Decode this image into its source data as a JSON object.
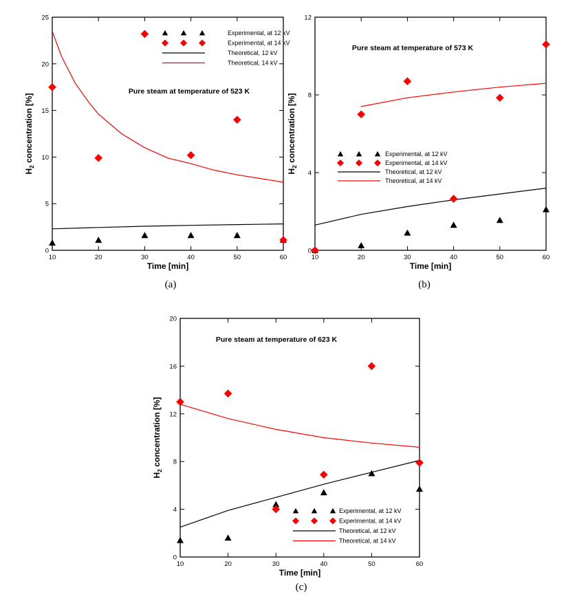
{
  "chart_data": [
    {
      "id": "a",
      "type": "scatter",
      "caption": "(a)",
      "title": "Pure steam at temperature of 523 K",
      "xlabel": "Time [min]",
      "ylabel_prefix": "H",
      "ylabel_sub": "2",
      "ylabel_suffix": " concentration [%]",
      "xlim": [
        10,
        60
      ],
      "ylim": [
        0,
        25
      ],
      "xticks": [
        10,
        20,
        30,
        40,
        50,
        60
      ],
      "yticks": [
        0,
        5,
        10,
        15,
        20,
        25
      ],
      "legend_position": "top-right",
      "series": [
        {
          "name": "Experimental, at 12 kV",
          "kind": "marker",
          "marker": "triangle",
          "color": "#000000",
          "x": [
            10,
            20,
            30,
            40,
            50,
            60
          ],
          "y": [
            0.8,
            1.1,
            1.6,
            1.6,
            1.6,
            1.1
          ]
        },
        {
          "name": "Experimental, at 14 kV",
          "kind": "marker",
          "marker": "diamond",
          "color": "#ff0000",
          "x": [
            10,
            20,
            30,
            40,
            50,
            60
          ],
          "y": [
            17.5,
            9.9,
            23.2,
            10.2,
            14.0,
            1.1
          ]
        },
        {
          "name": "Theoretical, 12 kV",
          "kind": "line",
          "color": "#000000",
          "x": [
            10,
            20,
            30,
            40,
            50,
            60
          ],
          "y": [
            2.3,
            2.45,
            2.58,
            2.68,
            2.76,
            2.83
          ]
        },
        {
          "name": "Theoretical, 14 kV",
          "kind": "line",
          "color": "#ff0000",
          "x": [
            10,
            12,
            15,
            18,
            20,
            25,
            30,
            35,
            40,
            45,
            50,
            55,
            60
          ],
          "y": [
            23.5,
            20.8,
            17.9,
            15.8,
            14.6,
            12.5,
            11.0,
            9.9,
            9.3,
            8.6,
            8.1,
            7.7,
            7.3
          ]
        }
      ]
    },
    {
      "id": "b",
      "type": "scatter",
      "caption": "(b)",
      "title": "Pure steam at temperature of 573 K",
      "xlabel": "Time [min]",
      "ylabel_prefix": "H",
      "ylabel_sub": "2",
      "ylabel_suffix": " concentration [%]",
      "xlim": [
        10,
        60
      ],
      "ylim": [
        0,
        12
      ],
      "xticks": [
        10,
        20,
        30,
        40,
        50,
        60
      ],
      "yticks": [
        0,
        4,
        8,
        12
      ],
      "legend_position": "center-left",
      "series": [
        {
          "name": "Experimental, at 12 kV",
          "kind": "marker",
          "marker": "triangle",
          "color": "#000000",
          "x": [
            10,
            20,
            30,
            40,
            50,
            60
          ],
          "y": [
            0.0,
            0.25,
            0.9,
            1.3,
            1.55,
            2.1
          ]
        },
        {
          "name": "Experimental, at 14 kV",
          "kind": "marker",
          "marker": "diamond",
          "color": "#ff0000",
          "x": [
            10,
            20,
            30,
            40,
            50,
            60
          ],
          "y": [
            0.0,
            7.0,
            8.7,
            2.65,
            7.85,
            10.6
          ]
        },
        {
          "name": "Theoretical, at 12 kV",
          "kind": "line",
          "color": "#000000",
          "x": [
            10,
            20,
            30,
            40,
            50,
            60
          ],
          "y": [
            1.3,
            1.85,
            2.25,
            2.6,
            2.9,
            3.2
          ]
        },
        {
          "name": "Theoretical, at 14 kV",
          "kind": "line",
          "color": "#ff0000",
          "x": [
            20,
            30,
            40,
            50,
            60
          ],
          "y": [
            7.4,
            7.85,
            8.15,
            8.4,
            8.6
          ]
        }
      ]
    },
    {
      "id": "c",
      "type": "scatter",
      "caption": "(c)",
      "title": "Pure steam at temperature of 623 K",
      "xlabel": "Time [min]",
      "ylabel_prefix": "H",
      "ylabel_sub": "2",
      "ylabel_suffix": " concentration [%]",
      "xlim": [
        10,
        60
      ],
      "ylim": [
        0,
        20
      ],
      "xticks": [
        10,
        20,
        30,
        40,
        50,
        60
      ],
      "yticks": [
        0,
        4,
        8,
        12,
        16,
        20
      ],
      "legend_position": "bottom-right",
      "series": [
        {
          "name": "Experimental, at 12 kV",
          "kind": "marker",
          "marker": "triangle",
          "color": "#000000",
          "x": [
            10,
            20,
            30,
            40,
            50,
            60
          ],
          "y": [
            1.4,
            1.6,
            4.4,
            5.4,
            7.0,
            5.7
          ]
        },
        {
          "name": "Experimental, at 14 kV",
          "kind": "marker",
          "marker": "diamond",
          "color": "#ff0000",
          "x": [
            10,
            20,
            30,
            40,
            50,
            60
          ],
          "y": [
            13.0,
            13.7,
            4.0,
            6.9,
            16.0,
            7.9
          ]
        },
        {
          "name": "Theoretical, at 12 kV",
          "kind": "line",
          "color": "#000000",
          "x": [
            10,
            20,
            30,
            40,
            50,
            60
          ],
          "y": [
            2.5,
            3.9,
            5.0,
            6.1,
            7.1,
            8.1
          ]
        },
        {
          "name": "Theoretical, at 14 kV",
          "kind": "line",
          "color": "#ff0000",
          "x": [
            10,
            15,
            20,
            30,
            40,
            50,
            60
          ],
          "y": [
            12.8,
            12.2,
            11.6,
            10.7,
            10.0,
            9.55,
            9.2
          ]
        }
      ]
    }
  ]
}
